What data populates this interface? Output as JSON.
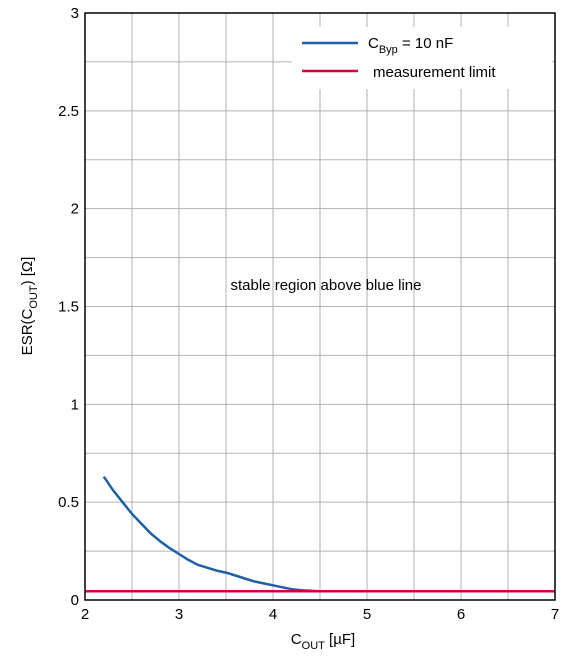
{
  "chart_data": {
    "type": "line",
    "xlim": [
      2,
      7
    ],
    "ylim": [
      0,
      3
    ],
    "x_ticks": [
      2,
      3,
      4,
      5,
      6,
      7
    ],
    "y_ticks": [
      0,
      0.5,
      1,
      1.5,
      2,
      2.5,
      3
    ],
    "x_tick_labels": [
      "2",
      "3",
      "4",
      "5",
      "6",
      "7"
    ],
    "y_tick_labels": [
      "0",
      "0.5",
      "1",
      "1.5",
      "2",
      "2.5",
      "3"
    ],
    "minor_grid_step_x": 0.5,
    "minor_grid_step_y": 0.25,
    "grid": true,
    "xlabel": {
      "main": "C",
      "sub": "OUT",
      "rest": " [µF]"
    },
    "ylabel": {
      "main": "ESR(C",
      "sub": "OUT",
      "rest": ") [Ω]"
    },
    "legend_position": "top-right",
    "annotation": "stable region above blue line",
    "series": [
      {
        "name": {
          "main": "C",
          "sub": "Byp",
          "rest": " = 10 nF"
        },
        "color": "#1f5fa6",
        "x": [
          2.2,
          2.3,
          2.4,
          2.5,
          2.6,
          2.7,
          2.8,
          2.9,
          3.0,
          3.1,
          3.2,
          3.3,
          3.4,
          3.5,
          3.6,
          3.7,
          3.8,
          3.9,
          4.0,
          4.1,
          4.2,
          4.3,
          4.4,
          4.5,
          4.6,
          4.8,
          5.0,
          5.5,
          6.0,
          6.5,
          7.0
        ],
        "y": [
          0.63,
          0.56,
          0.5,
          0.44,
          0.39,
          0.34,
          0.3,
          0.265,
          0.235,
          0.205,
          0.18,
          0.165,
          0.15,
          0.14,
          0.125,
          0.11,
          0.095,
          0.085,
          0.075,
          0.065,
          0.055,
          0.05,
          0.047,
          0.045,
          0.045,
          0.045,
          0.045,
          0.045,
          0.045,
          0.045,
          0.045
        ]
      },
      {
        "name": {
          "main": "measurement limit",
          "sub": "",
          "rest": ""
        },
        "color": "#d2003c",
        "x": [
          2,
          7
        ],
        "y": [
          0.045,
          0.045
        ]
      }
    ]
  }
}
